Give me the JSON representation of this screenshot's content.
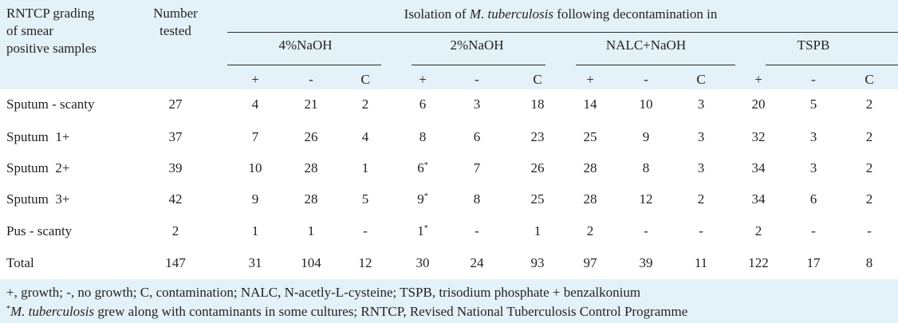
{
  "header": {
    "grading_label": "RNTCP grading of smear positive samples",
    "grading_lines": [
      "RNTCP grading",
      "of smear",
      "positive samples"
    ],
    "tested_lines": [
      "Number",
      "tested"
    ],
    "isolation_prefix": "Isolation of ",
    "isolation_organism": "M. tuberculosis",
    "isolation_suffix": " following decontamination in",
    "methods": [
      "4%NaOH",
      "2%NaOH",
      "NALC+NaOH",
      "TSPB"
    ],
    "subcols": [
      "+",
      "-",
      "C"
    ]
  },
  "rows": [
    {
      "label": "Sputum - scanty",
      "tested": "27",
      "cells": [
        "4",
        "21",
        "2",
        "6",
        "3",
        "18",
        "14",
        "10",
        "3",
        "20",
        "5",
        "2"
      ]
    },
    {
      "label": "Sputum  1+",
      "tested": "37",
      "cells": [
        "7",
        "26",
        "4",
        "8",
        "6",
        "23",
        "25",
        "9",
        "3",
        "32",
        "3",
        "2"
      ]
    },
    {
      "label": "Sputum  2+",
      "tested": "39",
      "cells": [
        "10",
        "28",
        "1",
        "6",
        "7",
        "26",
        "28",
        "8",
        "3",
        "34",
        "3",
        "2"
      ],
      "sup": [
        3
      ]
    },
    {
      "label": "Sputum  3+",
      "tested": "42",
      "cells": [
        "9",
        "28",
        "5",
        "9",
        "8",
        "25",
        "28",
        "12",
        "2",
        "34",
        "6",
        "2"
      ],
      "sup": [
        3
      ]
    },
    {
      "label": "Pus - scanty",
      "tested": "2",
      "cells": [
        "1",
        "1",
        "-",
        "1",
        "-",
        "1",
        "2",
        "-",
        "-",
        "2",
        "-",
        "-"
      ],
      "sup": [
        3
      ]
    },
    {
      "label": "Total",
      "tested": "147",
      "cells": [
        "31",
        "104",
        "12",
        "30",
        "24",
        "93",
        "97",
        "39",
        "11",
        "122",
        "17",
        "8"
      ]
    }
  ],
  "footnotes": {
    "line1": "+, growth; -, no growth; C, contamination; NALC, N-acetly-L-cysteine; TSPB, trisodium phosphate + benzalkonium",
    "line2_mark": "*",
    "line2_organism": "M. tuberculosis",
    "line2_text": " grew along with contaminants in some cultures; RNTCP, Revised National Tuberculosis Control Programme"
  },
  "colors": {
    "band": "#e3f2f8",
    "text": "#231f20"
  }
}
